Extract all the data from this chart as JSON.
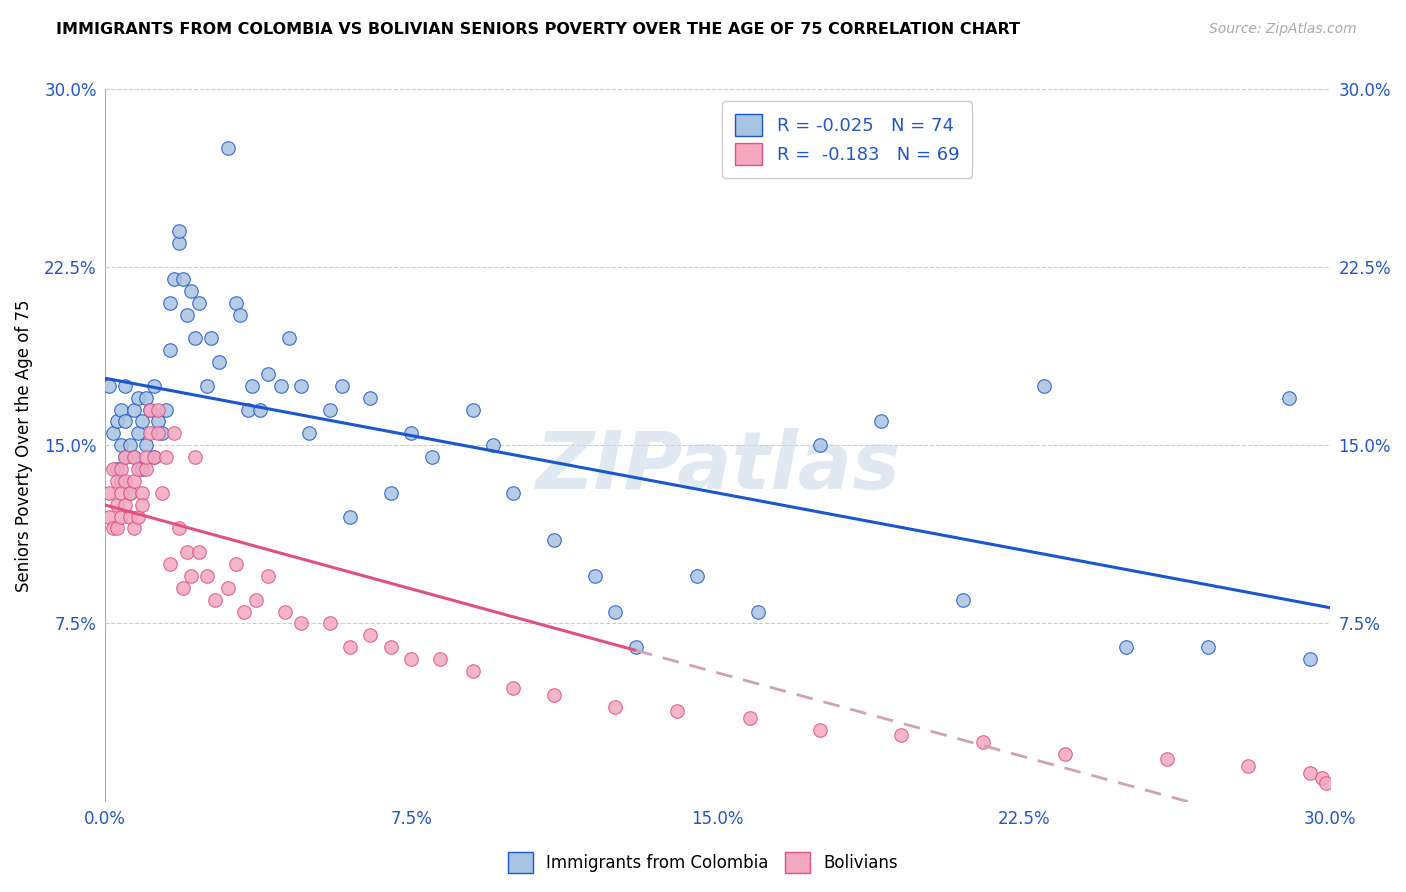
{
  "title": "IMMIGRANTS FROM COLOMBIA VS BOLIVIAN SENIORS POVERTY OVER THE AGE OF 75 CORRELATION CHART",
  "source": "Source: ZipAtlas.com",
  "ylabel": "Seniors Poverty Over the Age of 75",
  "xlim": [
    0.0,
    0.3
  ],
  "ylim": [
    0.0,
    0.3
  ],
  "xtick_labels": [
    "0.0%",
    "7.5%",
    "15.0%",
    "22.5%",
    "30.0%"
  ],
  "xtick_vals": [
    0.0,
    0.075,
    0.15,
    0.225,
    0.3
  ],
  "ytick_labels": [
    "30.0%",
    "22.5%",
    "15.0%",
    "7.5%"
  ],
  "ytick_vals": [
    0.3,
    0.225,
    0.15,
    0.075
  ],
  "colombia_R": -0.025,
  "colombia_N": 74,
  "bolivian_R": -0.183,
  "bolivian_N": 69,
  "colombia_color": "#a8c4e0",
  "bolivia_color": "#f4a8c0",
  "colombia_line_color": "#1a56cc",
  "bolivia_line_color": "#e05080",
  "bolivia_dashed_color": "#d0a0b8",
  "watermark": "ZIPatlas",
  "colombia_scatter_x": [
    0.001,
    0.002,
    0.003,
    0.003,
    0.004,
    0.004,
    0.004,
    0.005,
    0.005,
    0.005,
    0.006,
    0.006,
    0.007,
    0.007,
    0.008,
    0.008,
    0.009,
    0.009,
    0.01,
    0.01,
    0.011,
    0.012,
    0.012,
    0.013,
    0.014,
    0.015,
    0.016,
    0.016,
    0.017,
    0.018,
    0.018,
    0.019,
    0.02,
    0.021,
    0.022,
    0.023,
    0.025,
    0.026,
    0.028,
    0.03,
    0.032,
    0.033,
    0.035,
    0.036,
    0.038,
    0.04,
    0.043,
    0.045,
    0.048,
    0.05,
    0.055,
    0.058,
    0.06,
    0.065,
    0.07,
    0.075,
    0.08,
    0.09,
    0.095,
    0.1,
    0.11,
    0.12,
    0.125,
    0.13,
    0.145,
    0.16,
    0.175,
    0.19,
    0.21,
    0.23,
    0.25,
    0.27,
    0.29,
    0.295
  ],
  "colombia_scatter_y": [
    0.175,
    0.155,
    0.14,
    0.16,
    0.135,
    0.15,
    0.165,
    0.145,
    0.16,
    0.175,
    0.13,
    0.15,
    0.145,
    0.165,
    0.155,
    0.17,
    0.14,
    0.16,
    0.15,
    0.17,
    0.165,
    0.145,
    0.175,
    0.16,
    0.155,
    0.165,
    0.19,
    0.21,
    0.22,
    0.235,
    0.24,
    0.22,
    0.205,
    0.215,
    0.195,
    0.21,
    0.175,
    0.195,
    0.185,
    0.275,
    0.21,
    0.205,
    0.165,
    0.175,
    0.165,
    0.18,
    0.175,
    0.195,
    0.175,
    0.155,
    0.165,
    0.175,
    0.12,
    0.17,
    0.13,
    0.155,
    0.145,
    0.165,
    0.15,
    0.13,
    0.11,
    0.095,
    0.08,
    0.065,
    0.095,
    0.08,
    0.15,
    0.16,
    0.085,
    0.175,
    0.065,
    0.065,
    0.17,
    0.06
  ],
  "bolivian_scatter_x": [
    0.001,
    0.001,
    0.002,
    0.002,
    0.003,
    0.003,
    0.003,
    0.004,
    0.004,
    0.004,
    0.005,
    0.005,
    0.005,
    0.006,
    0.006,
    0.007,
    0.007,
    0.007,
    0.008,
    0.008,
    0.009,
    0.009,
    0.01,
    0.01,
    0.011,
    0.011,
    0.012,
    0.013,
    0.013,
    0.014,
    0.015,
    0.016,
    0.017,
    0.018,
    0.019,
    0.02,
    0.021,
    0.022,
    0.023,
    0.025,
    0.027,
    0.03,
    0.032,
    0.034,
    0.037,
    0.04,
    0.044,
    0.048,
    0.055,
    0.06,
    0.065,
    0.07,
    0.075,
    0.082,
    0.09,
    0.1,
    0.11,
    0.125,
    0.14,
    0.158,
    0.175,
    0.195,
    0.215,
    0.235,
    0.26,
    0.28,
    0.295,
    0.298,
    0.299
  ],
  "bolivian_scatter_y": [
    0.13,
    0.12,
    0.14,
    0.115,
    0.135,
    0.125,
    0.115,
    0.13,
    0.12,
    0.14,
    0.125,
    0.135,
    0.145,
    0.13,
    0.12,
    0.135,
    0.145,
    0.115,
    0.14,
    0.12,
    0.13,
    0.125,
    0.14,
    0.145,
    0.155,
    0.165,
    0.145,
    0.155,
    0.165,
    0.13,
    0.145,
    0.1,
    0.155,
    0.115,
    0.09,
    0.105,
    0.095,
    0.145,
    0.105,
    0.095,
    0.085,
    0.09,
    0.1,
    0.08,
    0.085,
    0.095,
    0.08,
    0.075,
    0.075,
    0.065,
    0.07,
    0.065,
    0.06,
    0.06,
    0.055,
    0.048,
    0.045,
    0.04,
    0.038,
    0.035,
    0.03,
    0.028,
    0.025,
    0.02,
    0.018,
    0.015,
    0.012,
    0.01,
    0.008
  ]
}
